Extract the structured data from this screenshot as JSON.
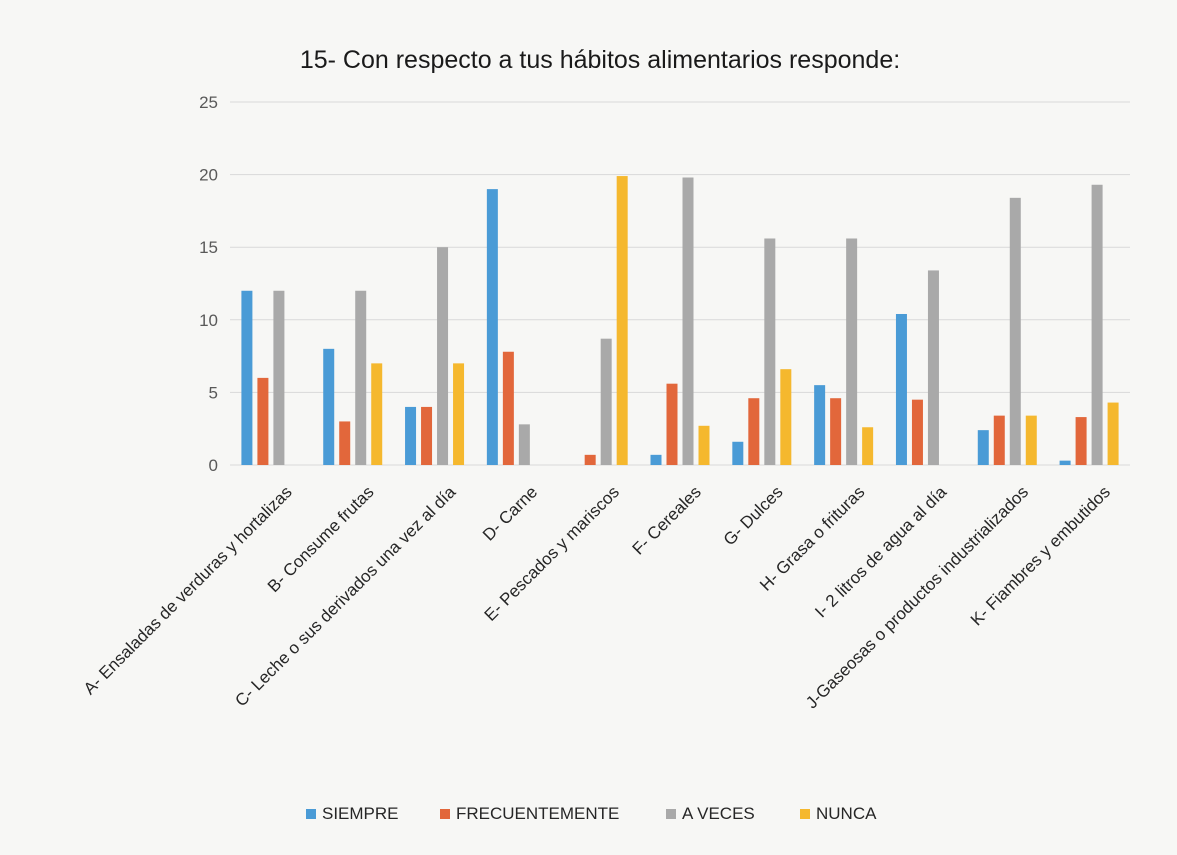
{
  "chart_data": {
    "type": "bar",
    "title": "15- Con respecto a tus hábitos alimentarios responde:",
    "xlabel": "",
    "ylabel": "",
    "ylim": [
      0,
      25
    ],
    "yticks": [
      0,
      5,
      10,
      15,
      20,
      25
    ],
    "grid": true,
    "legend_position": "bottom",
    "categories": [
      "A- Ensaladas de verduras y hortalizas",
      "B- Consume frutas",
      "C- Leche o sus derivados una vez al día",
      "D- Carne",
      "E- Pescados y mariscos",
      "F- Cereales",
      "G- Dulces",
      "H- Grasa o frituras",
      "I- 2 litros de agua al día",
      "J-Gaseosas o productos industrializados",
      "K- Fiambres y embutidos"
    ],
    "series": [
      {
        "name": "SIEMPRE",
        "color": "#4a9bd6",
        "values": [
          12,
          8,
          4,
          19,
          0,
          0.7,
          1.6,
          5.5,
          10.4,
          2.4,
          0.3
        ]
      },
      {
        "name": "FRECUENTEMENTE",
        "color": "#e2673b",
        "values": [
          6,
          3,
          4,
          7.8,
          0.7,
          5.6,
          4.6,
          4.6,
          4.5,
          3.4,
          3.3
        ]
      },
      {
        "name": "A VECES",
        "color": "#a9a9a9",
        "values": [
          12,
          12,
          15,
          2.8,
          8.7,
          19.8,
          15.6,
          15.6,
          13.4,
          18.4,
          19.3
        ]
      },
      {
        "name": "NUNCA",
        "color": "#f5b82e",
        "values": [
          0,
          7,
          7,
          0,
          19.9,
          2.7,
          6.6,
          2.6,
          0,
          3.4,
          4.3
        ]
      }
    ]
  }
}
